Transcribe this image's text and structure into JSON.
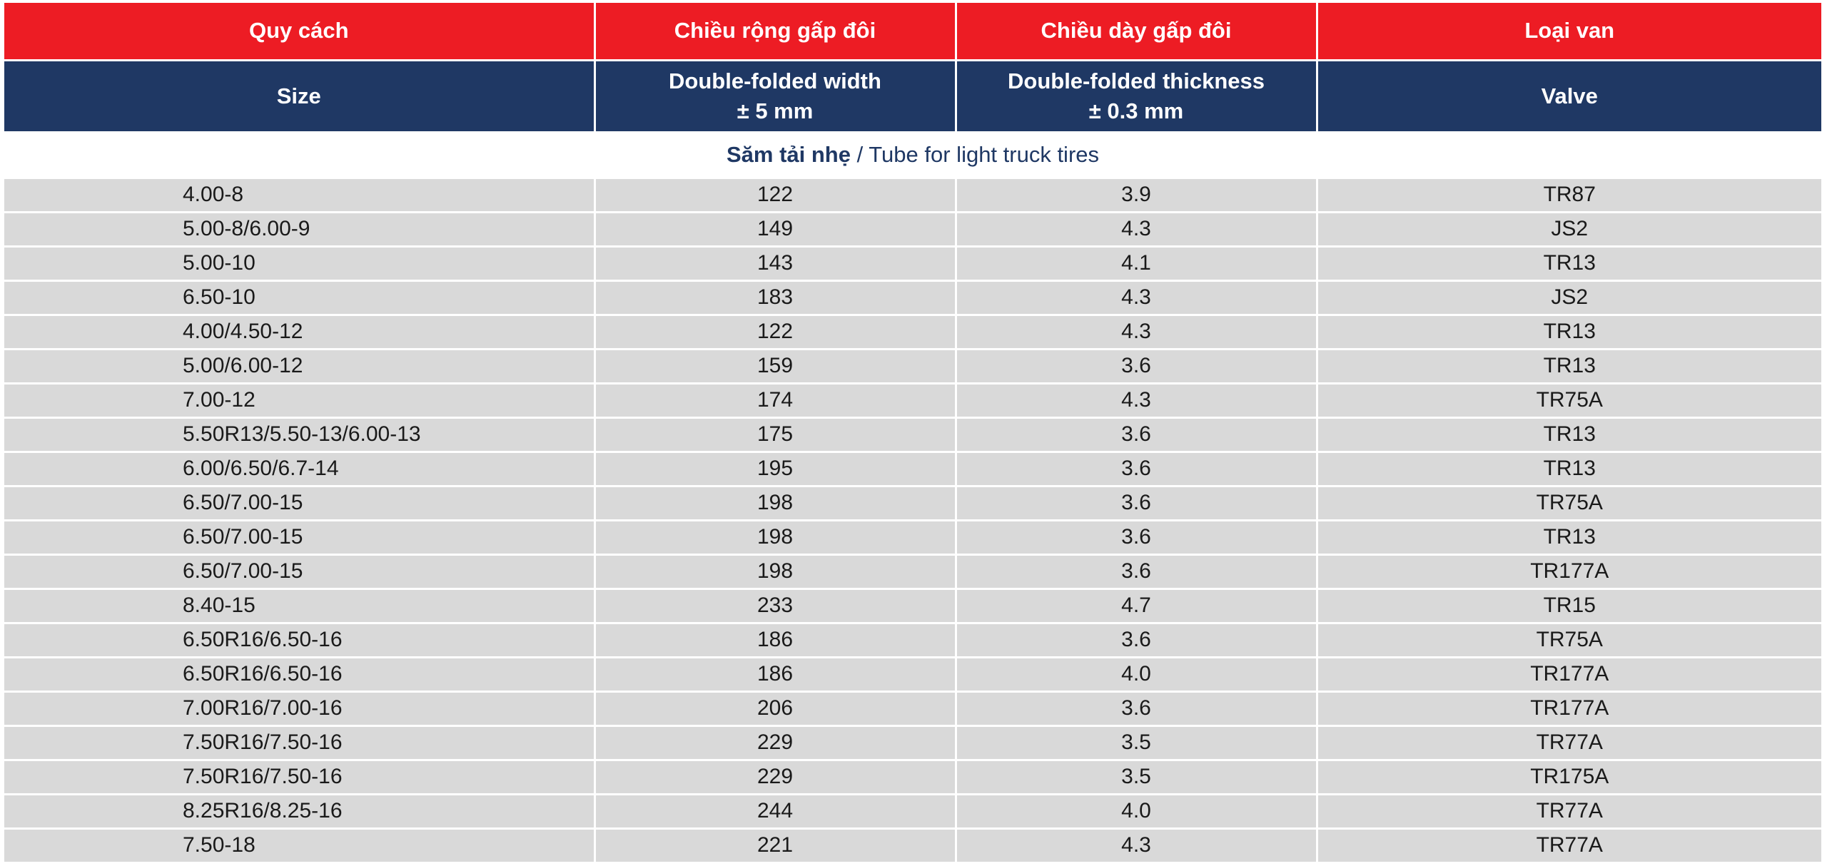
{
  "header_vi": {
    "size": "Quy cách",
    "width": "Chiều rộng gấp đôi",
    "thickness": "Chiều dày gấp đôi",
    "valve": "Loại van"
  },
  "header_en": {
    "size": "Size",
    "width": "Double-folded width",
    "width_tol": "± 5 mm",
    "thickness": "Double-folded thickness",
    "thickness_tol": "± 0.3 mm",
    "valve": "Valve"
  },
  "section": {
    "title_vi": "Săm tải nhẹ",
    "separator": " / ",
    "title_en": "Tube for light truck tires"
  },
  "rows": [
    {
      "size": "4.00-8",
      "width": "122",
      "thickness": "3.9",
      "valve": "TR87"
    },
    {
      "size": "5.00-8/6.00-9",
      "width": "149",
      "thickness": "4.3",
      "valve": "JS2"
    },
    {
      "size": "5.00-10",
      "width": "143",
      "thickness": "4.1",
      "valve": "TR13"
    },
    {
      "size": "6.50-10",
      "width": "183",
      "thickness": "4.3",
      "valve": "JS2"
    },
    {
      "size": "4.00/4.50-12",
      "width": "122",
      "thickness": "4.3",
      "valve": "TR13"
    },
    {
      "size": "5.00/6.00-12",
      "width": "159",
      "thickness": "3.6",
      "valve": "TR13"
    },
    {
      "size": "7.00-12",
      "width": "174",
      "thickness": "4.3",
      "valve": "TR75A"
    },
    {
      "size": "5.50R13/5.50-13/6.00-13",
      "width": "175",
      "thickness": "3.6",
      "valve": "TR13"
    },
    {
      "size": "6.00/6.50/6.7-14",
      "width": "195",
      "thickness": "3.6",
      "valve": "TR13"
    },
    {
      "size": "6.50/7.00-15",
      "width": "198",
      "thickness": "3.6",
      "valve": "TR75A"
    },
    {
      "size": "6.50/7.00-15",
      "width": "198",
      "thickness": "3.6",
      "valve": "TR13"
    },
    {
      "size": "6.50/7.00-15",
      "width": "198",
      "thickness": "3.6",
      "valve": "TR177A"
    },
    {
      "size": "8.40-15",
      "width": "233",
      "thickness": "4.7",
      "valve": "TR15"
    },
    {
      "size": "6.50R16/6.50-16",
      "width": "186",
      "thickness": "3.6",
      "valve": "TR75A"
    },
    {
      "size": "6.50R16/6.50-16",
      "width": "186",
      "thickness": "4.0",
      "valve": "TR177A"
    },
    {
      "size": "7.00R16/7.00-16",
      "width": "206",
      "thickness": "3.6",
      "valve": "TR177A"
    },
    {
      "size": "7.50R16/7.50-16",
      "width": "229",
      "thickness": "3.5",
      "valve": "TR77A"
    },
    {
      "size": "7.50R16/7.50-16",
      "width": "229",
      "thickness": "3.5",
      "valve": "TR175A"
    },
    {
      "size": "8.25R16/8.25-16",
      "width": "244",
      "thickness": "4.0",
      "valve": "TR77A"
    },
    {
      "size": "7.50-18",
      "width": "221",
      "thickness": "4.3",
      "valve": "TR77A"
    }
  ],
  "colors": {
    "header_red": "#ed1c24",
    "header_navy": "#1f3864",
    "row_gray": "#d9d9d9"
  }
}
